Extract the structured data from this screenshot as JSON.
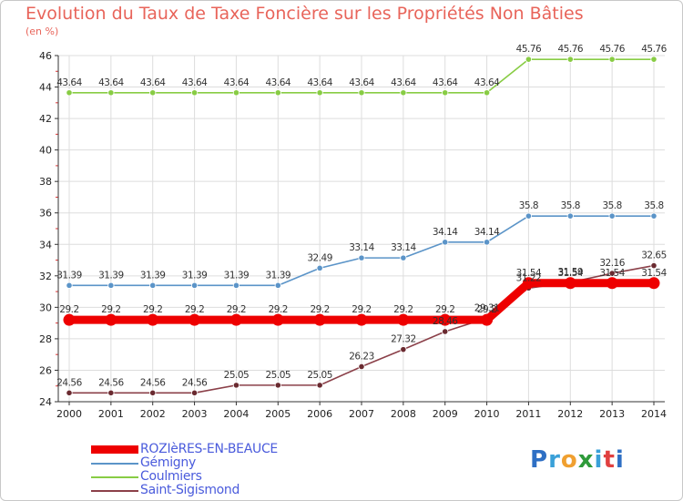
{
  "title": "Evolution du Taux de Taxe Foncière sur les Propriétés Non Bâties",
  "unit_label": "(en %)",
  "logo": {
    "letters": [
      "P",
      "r",
      "o",
      "x",
      "i",
      "t",
      "i"
    ],
    "colors": [
      "#2e6fc4",
      "#3aa0d8",
      "#f0a030",
      "#2e9a3a",
      "#3aa0d8",
      "#e04040",
      "#2e6fc4"
    ]
  },
  "chart_data": {
    "type": "line",
    "title": "Evolution du Taux de Taxe Foncière sur les Propriétés Non Bâties",
    "ylabel": "(en %)",
    "xlabel": "",
    "x": [
      "2000",
      "2001",
      "2002",
      "2003",
      "2004",
      "2005",
      "2006",
      "2007",
      "2008",
      "2009",
      "2010",
      "2011",
      "2012",
      "2013",
      "2014"
    ],
    "ylim": [
      24,
      46
    ],
    "yticks": [
      "24",
      "26",
      "28",
      "30",
      "32",
      "34",
      "36",
      "38",
      "40",
      "42",
      "44",
      "46"
    ],
    "grid": true,
    "series": [
      {
        "name": "ROZIèRES-EN-BEAUCE",
        "color": "#ee0000",
        "values": [
          29.2,
          29.2,
          29.2,
          29.2,
          29.2,
          29.2,
          29.2,
          29.2,
          29.2,
          29.2,
          29.2,
          31.54,
          31.54,
          31.54,
          31.54
        ],
        "labels": [
          "29.2",
          "29.2",
          "29.2",
          "29.2",
          "29.2",
          "29.2",
          "29.2",
          "29.2",
          "29.2",
          "29.2",
          "29.2",
          "31.54",
          "31.54",
          "31.54",
          "31.54"
        ]
      },
      {
        "name": "Gémigny",
        "color": "#5b94c8",
        "values": [
          31.39,
          31.39,
          31.39,
          31.39,
          31.39,
          31.39,
          32.49,
          33.14,
          33.14,
          34.14,
          34.14,
          35.8,
          35.8,
          35.8,
          35.8
        ],
        "labels": [
          "31.39",
          "31.39",
          "31.39",
          "31.39",
          "31.39",
          "31.39",
          "32.49",
          "33.14",
          "33.14",
          "34.14",
          "34.14",
          "35.8",
          "35.8",
          "35.8",
          "35.8"
        ]
      },
      {
        "name": "Coulmiers",
        "color": "#88cc44",
        "values": [
          43.64,
          43.64,
          43.64,
          43.64,
          43.64,
          43.64,
          43.64,
          43.64,
          43.64,
          43.64,
          43.64,
          45.76,
          45.76,
          45.76,
          45.76
        ],
        "labels": [
          "43.64",
          "43.64",
          "43.64",
          "43.64",
          "43.64",
          "43.64",
          "43.64",
          "43.64",
          "43.64",
          "43.64",
          "43.64",
          "45.76",
          "45.76",
          "45.76",
          "45.76"
        ]
      },
      {
        "name": "Saint-Sigismond",
        "color": "#8b4049",
        "values": [
          24.56,
          24.56,
          24.56,
          24.56,
          25.05,
          25.05,
          25.05,
          26.23,
          27.32,
          28.46,
          29.31,
          31.22,
          31.59,
          32.16,
          32.65
        ],
        "labels": [
          "24.56",
          "24.56",
          "24.56",
          "24.56",
          "25.05",
          "25.05",
          "25.05",
          "26.23",
          "27.32",
          "28.46",
          "29.31",
          "31.22",
          "31.59",
          "32.16",
          "32.65"
        ]
      }
    ]
  }
}
